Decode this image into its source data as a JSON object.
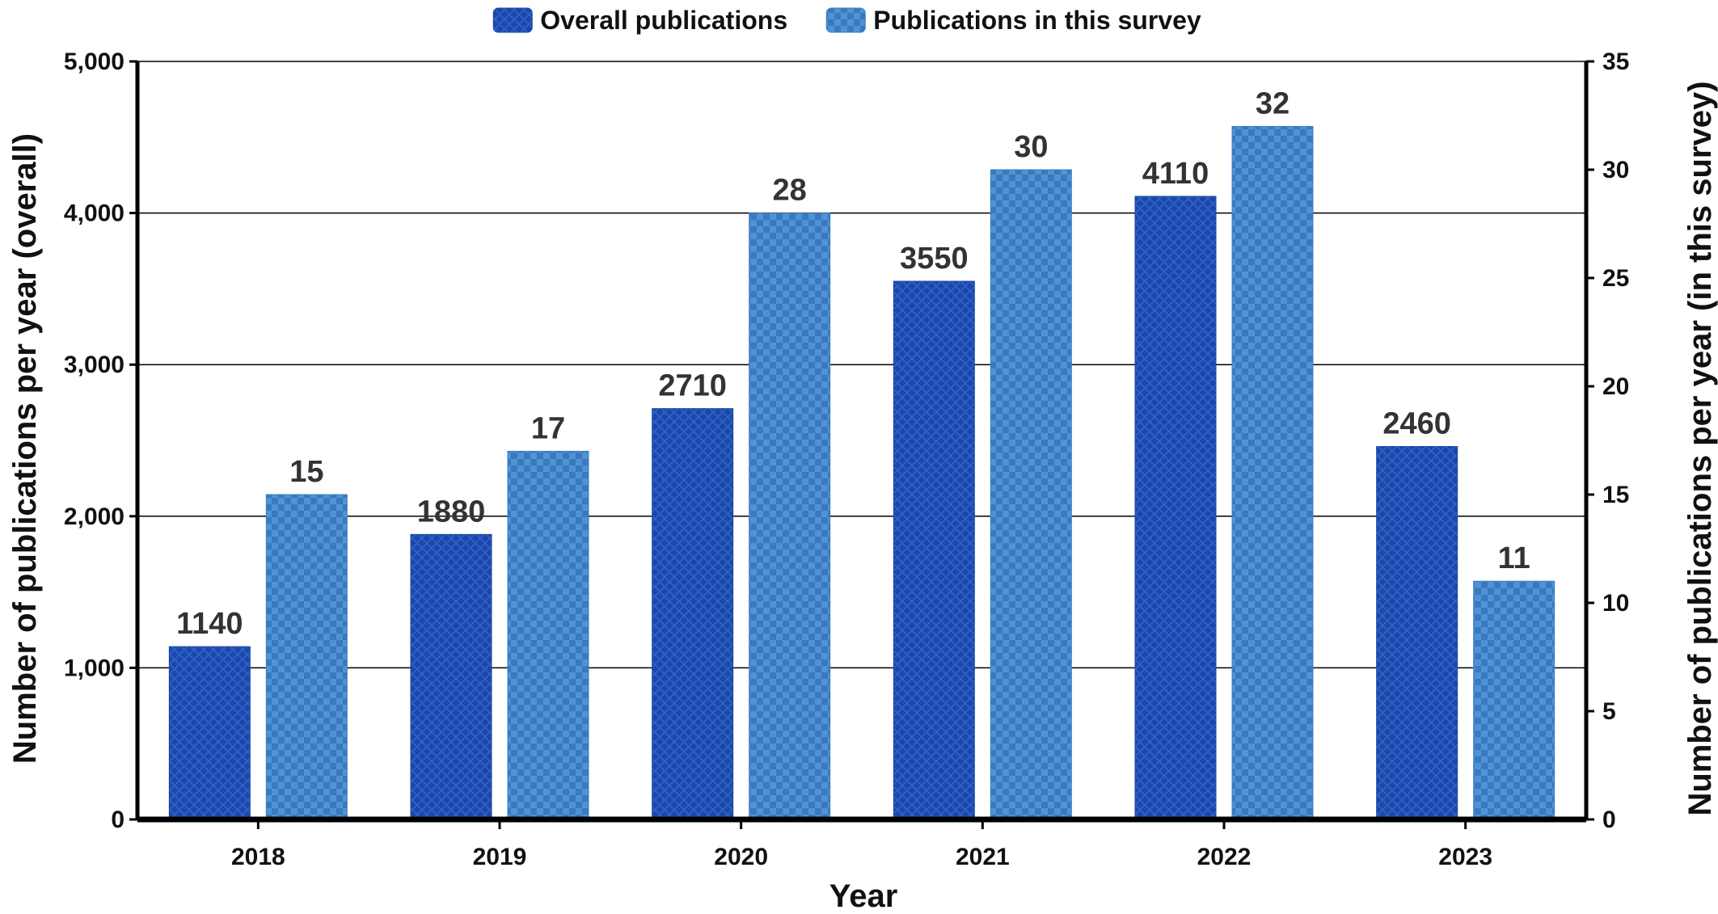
{
  "chart_data": {
    "type": "bar",
    "categories": [
      "2018",
      "2019",
      "2020",
      "2021",
      "2022",
      "2023"
    ],
    "series": [
      {
        "name": "Overall publications",
        "axis": "left",
        "values": [
          1140,
          1880,
          2710,
          3550,
          4110,
          2460
        ],
        "color": "#1a47a8"
      },
      {
        "name": "Publications in this survey",
        "axis": "right",
        "values": [
          15,
          17,
          28,
          30,
          32,
          11
        ],
        "color": "#3c7fc4"
      }
    ],
    "xlabel": "Year",
    "ylabel": "Number of publications per year (overall)",
    "y2label": "Number of publications per year (in this survey)",
    "ylim": [
      0,
      5000
    ],
    "y2lim": [
      0,
      35
    ],
    "yticks": [
      "0",
      "1,000",
      "2,000",
      "3,000",
      "4,000",
      "5,000"
    ],
    "y2ticks": [
      "0",
      "5",
      "10",
      "15",
      "20",
      "25",
      "30",
      "35"
    ],
    "grid": true,
    "legend": "top-center"
  }
}
